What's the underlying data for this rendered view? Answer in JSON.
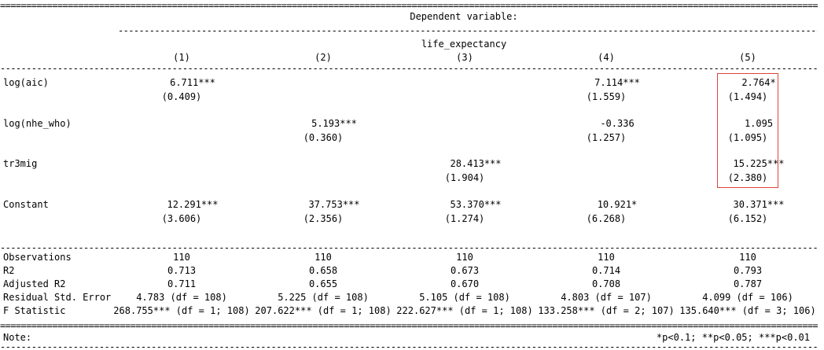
{
  "header": {
    "dep_var_label": "Dependent variable:",
    "dep_var_name": "life_expectancy",
    "columns": [
      "(1)",
      "(2)",
      "(3)",
      "(4)",
      "(5)"
    ]
  },
  "rows": [
    {
      "name": "log(aic)",
      "coef": [
        "6.711***",
        "",
        "",
        "7.114***",
        "2.764*"
      ],
      "se": [
        "(0.409)",
        "",
        "",
        "(1.559)",
        "(1.494)"
      ]
    },
    {
      "name": "log(nhe_who)",
      "coef": [
        "",
        "5.193***",
        "",
        "-0.336",
        "1.095"
      ],
      "se": [
        "",
        "(0.360)",
        "",
        "(1.257)",
        "(1.095)"
      ]
    },
    {
      "name": "tr3mig",
      "coef": [
        "",
        "",
        "28.413***",
        "",
        "15.225***"
      ],
      "se": [
        "",
        "",
        "(1.904)",
        "",
        "(2.380)"
      ]
    },
    {
      "name": "Constant",
      "coef": [
        "12.291***",
        "37.753***",
        "53.370***",
        "10.921*",
        "30.371***"
      ],
      "se": [
        "(3.606)",
        "(2.356)",
        "(1.274)",
        "(6.268)",
        "(6.152)"
      ]
    }
  ],
  "stats": [
    {
      "name": "Observations",
      "values": [
        "110",
        "110",
        "110",
        "110",
        "110"
      ]
    },
    {
      "name": "R2",
      "values": [
        "0.713",
        "0.658",
        "0.673",
        "0.714",
        "0.793"
      ]
    },
    {
      "name": "Adjusted R2",
      "values": [
        "0.711",
        "0.655",
        "0.670",
        "0.708",
        "0.787"
      ]
    },
    {
      "name": "Residual Std. Error",
      "values": [
        "4.783 (df = 108)",
        "5.225 (df = 108)",
        "5.105 (df = 108)",
        "4.803 (df = 107)",
        "4.099 (df = 106)"
      ]
    },
    {
      "name": "F Statistic",
      "values": [
        "268.755*** (df = 1; 108)",
        "207.622*** (df = 1; 108)",
        "222.627*** (df = 1; 108)",
        "133.258*** (df = 2; 107)",
        "135.640*** (df = 3; 106)"
      ]
    }
  ],
  "footer": {
    "note_label": "Note:",
    "significance": "*p<0.1; **p<0.05; ***p<0.01"
  },
  "colors": {
    "highlight_border": "#e0433a"
  }
}
